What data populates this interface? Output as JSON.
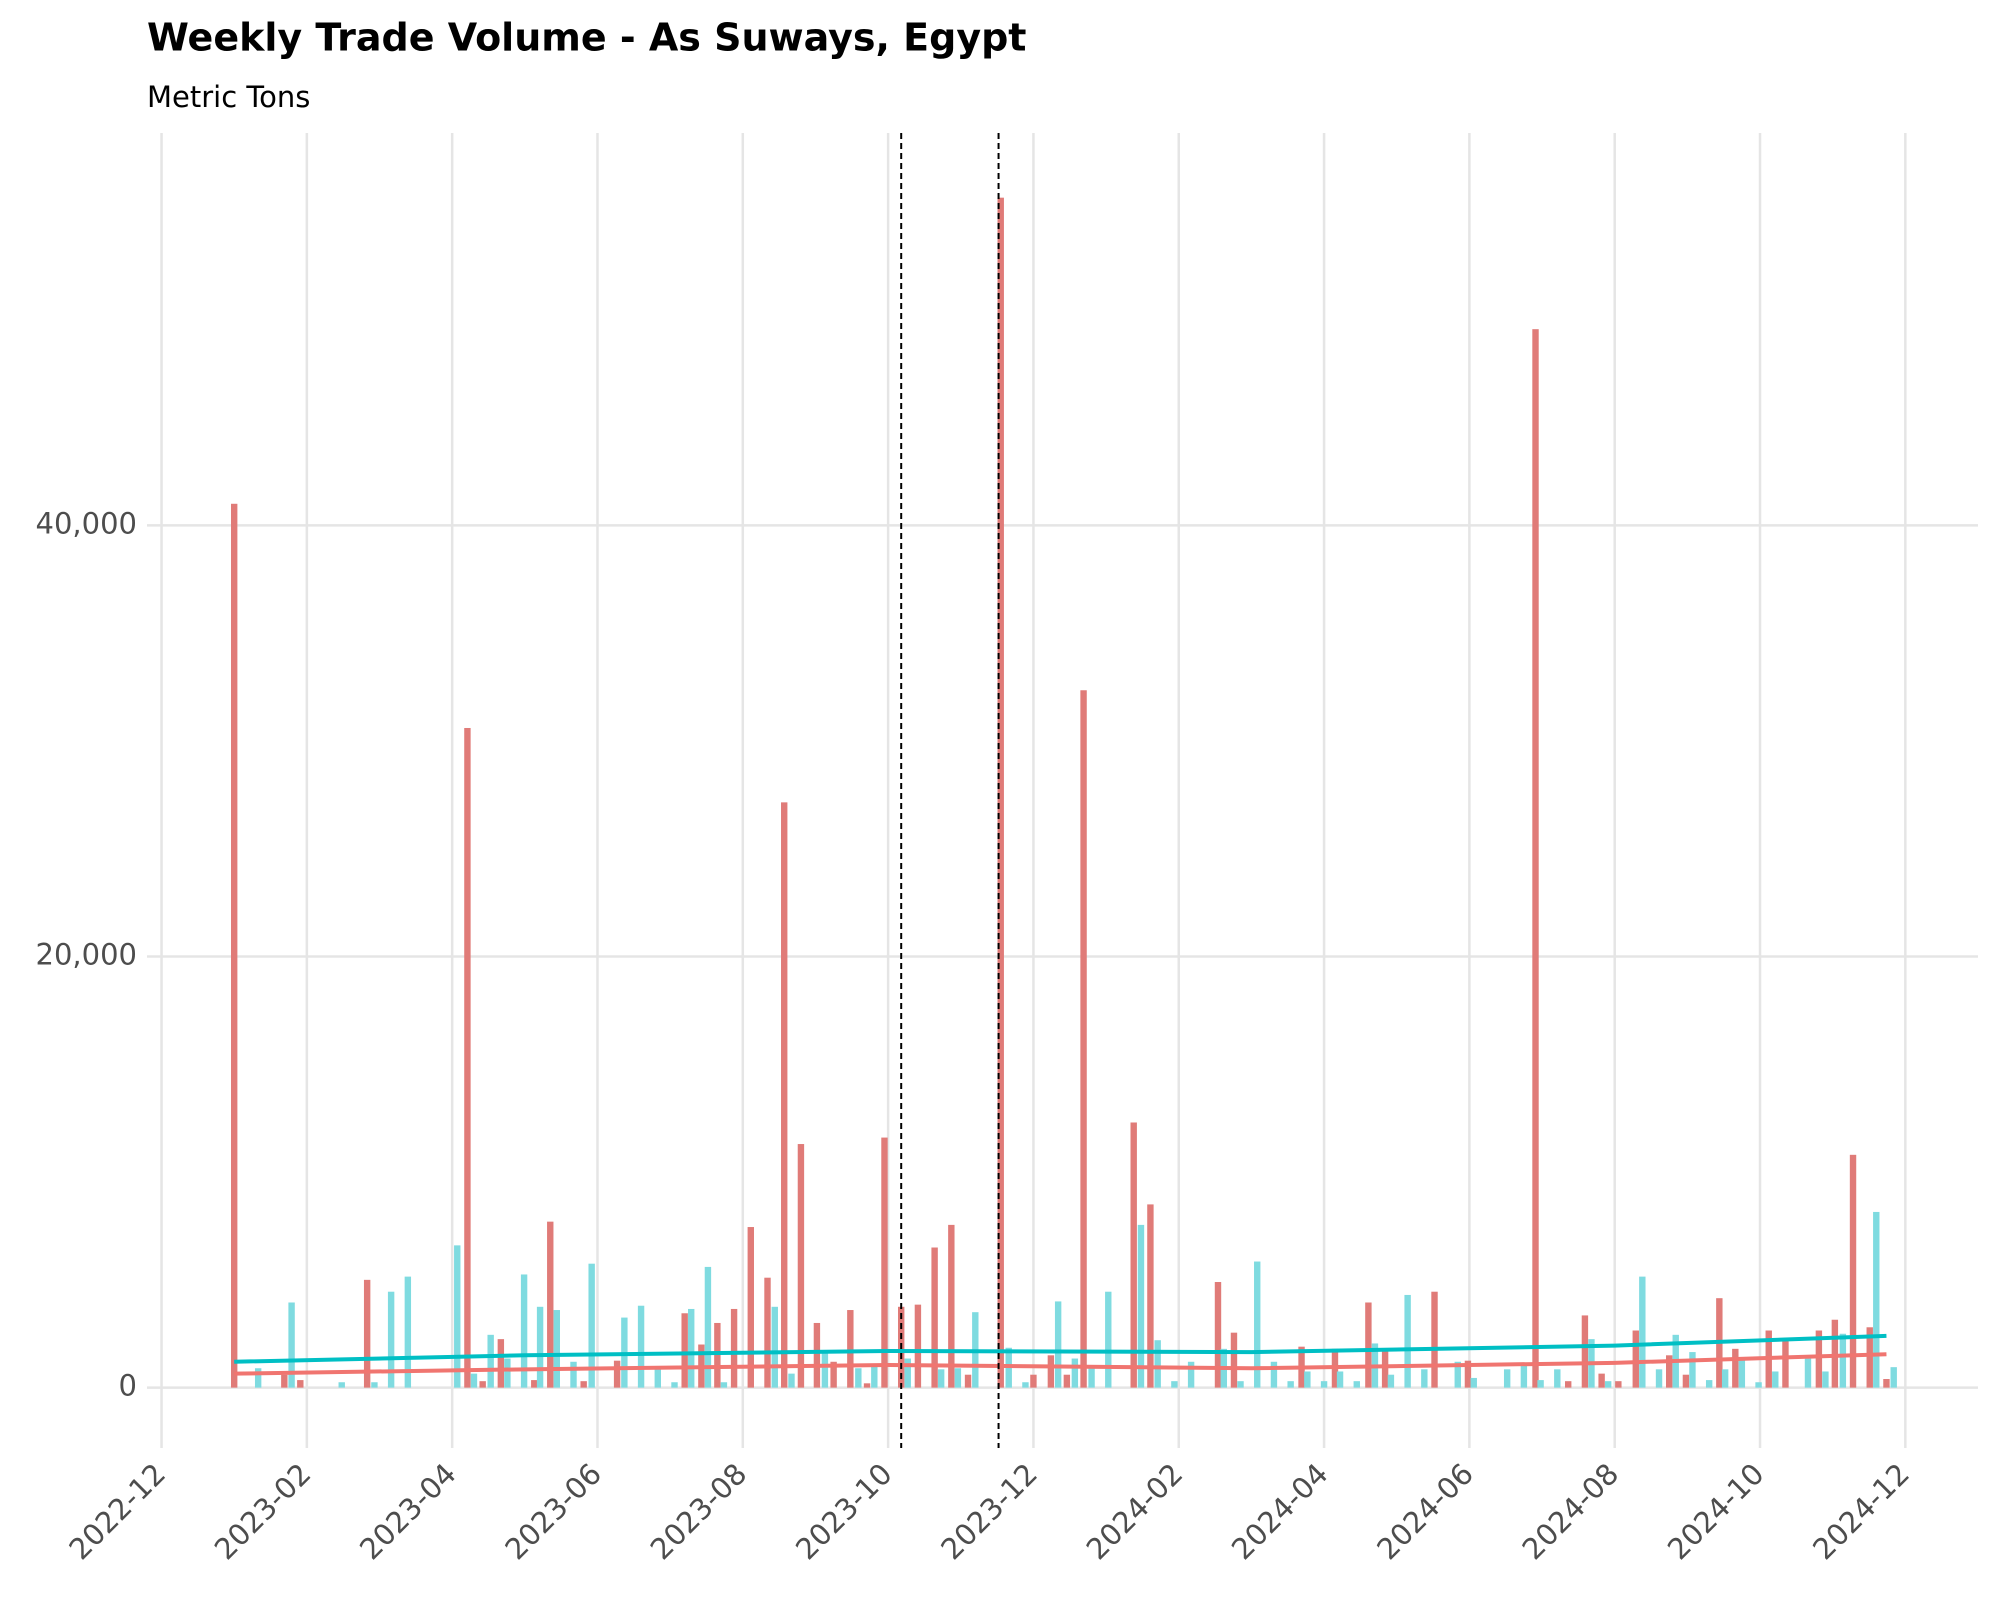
{
  "chart_data": {
    "type": "bar",
    "title": "Weekly Trade Volume - As Suways, Egypt",
    "subtitle": "Metric Tons",
    "xlim": [
      -0.2,
      25
    ],
    "ylim": [
      -2800,
      58200
    ],
    "xticks": [
      {
        "value": 0,
        "label": "2022-12"
      },
      {
        "value": 2,
        "label": "2023-02"
      },
      {
        "value": 4,
        "label": "2023-04"
      },
      {
        "value": 6,
        "label": "2023-06"
      },
      {
        "value": 8,
        "label": "2023-08"
      },
      {
        "value": 10,
        "label": "2023-10"
      },
      {
        "value": 12,
        "label": "2023-12"
      },
      {
        "value": 14,
        "label": "2024-02"
      },
      {
        "value": 16,
        "label": "2024-04"
      },
      {
        "value": 18,
        "label": "2024-06"
      },
      {
        "value": 20,
        "label": "2024-08"
      },
      {
        "value": 22,
        "label": "2024-10"
      },
      {
        "value": 24,
        "label": "2024-12"
      }
    ],
    "yticks": [
      {
        "value": 0,
        "label": "0"
      },
      {
        "value": 20000,
        "label": "20,000"
      },
      {
        "value": 40000,
        "label": "40,000"
      }
    ],
    "grid": true,
    "vlines": [
      10.18,
      11.52
    ],
    "series": [
      {
        "type": "bar",
        "color": "#e07b78",
        "x": [
          1.0,
          1.69,
          1.91,
          2.83,
          4.21,
          4.42,
          4.67,
          5.13,
          5.35,
          5.81,
          6.27,
          7.2,
          7.43,
          7.65,
          7.88,
          8.11,
          8.34,
          8.57,
          8.8,
          9.02,
          9.25,
          9.48,
          9.71,
          9.95,
          10.18,
          10.41,
          10.64,
          10.87,
          11.1,
          11.55,
          12.0,
          12.24,
          12.46,
          12.69,
          13.38,
          13.61,
          14.54,
          14.76,
          15.69,
          16.15,
          16.61,
          16.84,
          17.52,
          17.98,
          18.91,
          19.36,
          19.59,
          19.82,
          20.05,
          20.29,
          20.75,
          20.98,
          21.44,
          21.66,
          22.12,
          22.35,
          22.81,
          23.03,
          23.28,
          23.51,
          23.74
        ],
        "values": [
          41000,
          600,
          350,
          5000,
          30600,
          300,
          2250,
          350,
          7700,
          300,
          1250,
          3450,
          2000,
          3000,
          3650,
          7450,
          5100,
          27150,
          11300,
          3000,
          1200,
          3600,
          200,
          11600,
          3750,
          3850,
          6500,
          7550,
          600,
          55200,
          600,
          1500,
          600,
          32350,
          12300,
          8500,
          4900,
          2550,
          1900,
          1800,
          3950,
          1800,
          4450,
          1250,
          49100,
          300,
          3350,
          650,
          300,
          2650,
          1500,
          600,
          4150,
          1800,
          2650,
          2250,
          2650,
          3150,
          10800,
          2800,
          400
        ]
      },
      {
        "type": "bar",
        "color": "#7fdbe0",
        "x": [
          1.33,
          1.79,
          2.48,
          2.93,
          3.16,
          3.39,
          4.07,
          4.3,
          4.53,
          4.76,
          4.99,
          5.21,
          5.44,
          5.67,
          5.92,
          6.37,
          6.6,
          6.83,
          7.06,
          7.29,
          7.52,
          7.74,
          8.44,
          8.67,
          9.13,
          9.59,
          9.81,
          10.27,
          10.73,
          10.96,
          11.2,
          11.66,
          11.89,
          12.34,
          12.57,
          12.8,
          13.03,
          13.48,
          13.71,
          13.94,
          14.17,
          14.62,
          14.85,
          15.08,
          15.31,
          15.54,
          15.77,
          16.0,
          16.22,
          16.45,
          16.7,
          16.92,
          17.15,
          17.38,
          17.84,
          18.06,
          18.52,
          18.75,
          18.98,
          19.21,
          19.68,
          19.91,
          20.38,
          20.61,
          20.84,
          21.07,
          21.3,
          21.52,
          21.75,
          21.98,
          22.21,
          22.66,
          22.9,
          23.14,
          23.6,
          23.84
        ],
        "values": [
          900,
          3950,
          250,
          250,
          4450,
          5150,
          6600,
          650,
          2450,
          1350,
          5250,
          3750,
          3600,
          1200,
          5750,
          3250,
          3800,
          900,
          250,
          3650,
          5600,
          250,
          3750,
          650,
          1650,
          900,
          1050,
          1350,
          850,
          900,
          3500,
          1850,
          250,
          4000,
          1350,
          1050,
          4450,
          7550,
          2200,
          300,
          1200,
          1800,
          300,
          5850,
          1200,
          300,
          750,
          300,
          750,
          300,
          2050,
          600,
          4300,
          850,
          1200,
          450,
          850,
          1050,
          350,
          850,
          2250,
          300,
          5150,
          850,
          2450,
          1650,
          350,
          850,
          1350,
          250,
          750,
          1350,
          750,
          2500,
          8150,
          950
        ]
      },
      {
        "type": "line",
        "color": "#f07570",
        "x": [
          1.0,
          5.0,
          10.0,
          15.0,
          20.0,
          23.74
        ],
        "values": [
          650,
          850,
          1050,
          900,
          1150,
          1550
        ]
      },
      {
        "type": "line",
        "color": "#00bfc4",
        "x": [
          1.0,
          5.0,
          10.0,
          15.0,
          20.0,
          23.74
        ],
        "values": [
          1200,
          1500,
          1700,
          1650,
          1950,
          2400
        ]
      }
    ]
  }
}
